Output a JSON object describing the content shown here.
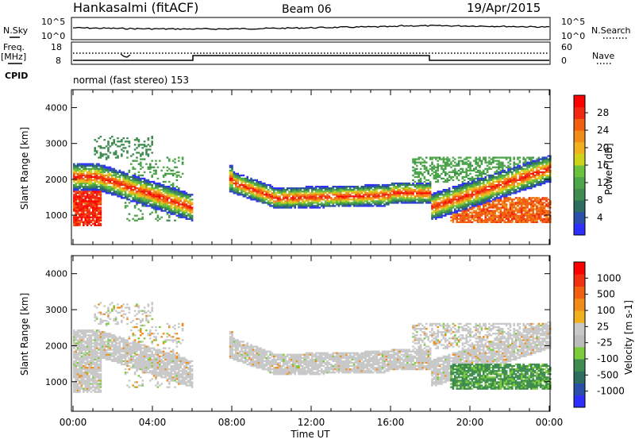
{
  "header": {
    "station": "Hankasalmi (fitACF)",
    "beam": "Beam 06",
    "date": "19/Apr/2015"
  },
  "sky_panel": {
    "left_label": "N.Sky",
    "right_label": "N.Search",
    "left_ticks": [
      "10^5",
      "10^0"
    ],
    "right_ticks": [
      "10^5",
      "10^0"
    ]
  },
  "freq_panel": {
    "left_label_1": "Freq.",
    "left_label_2": "[MHz]",
    "left_ticks": [
      "18",
      "8"
    ],
    "right_label": "Nave",
    "right_ticks": [
      "60",
      "0"
    ],
    "cpid_label": "CPID",
    "mode_text": "normal (fast stereo) 153"
  },
  "chart_data": [
    {
      "type": "heatmap",
      "title": "Power",
      "xlabel": "",
      "ylabel": "Slant Range [km]",
      "ylim": [
        180,
        4500
      ],
      "yticks": [
        "4000",
        "3000",
        "2000",
        "1000"
      ],
      "colorbar": {
        "label": "Power [dB]",
        "ticks": [
          "28",
          "24",
          "20",
          "16",
          "12",
          "8",
          "4"
        ],
        "colors": [
          "#2e2eff",
          "#2a4fa8",
          "#2e6e60",
          "#3e8c4f",
          "#4ea64a",
          "#6cc23c",
          "#cfd21a",
          "#f0b020",
          "#f08c18",
          "#f06010",
          "#f02a10",
          "#ff0000"
        ]
      }
    },
    {
      "type": "heatmap",
      "title": "Velocity",
      "xlabel": "Time UT",
      "ylabel": "Slant Range [km]",
      "ylim": [
        180,
        4500
      ],
      "yticks": [
        "4000",
        "3000",
        "2000",
        "1000"
      ],
      "xticks": [
        "00:00",
        "04:00",
        "08:00",
        "12:00",
        "16:00",
        "20:00",
        "00:00"
      ],
      "colorbar": {
        "label": "Velocity [m s-1]",
        "ticks": [
          "1000",
          "500",
          "100",
          "25",
          "-25",
          "-100",
          "-500",
          "-1000"
        ],
        "colors": [
          "#2e2eff",
          "#2a4fa8",
          "#2e6e60",
          "#3e8c4f",
          "#7ccc3c",
          "#bcbcbc",
          "#c8c8c8",
          "#f0b020",
          "#f08c18",
          "#f06010",
          "#f03010",
          "#ff0000"
        ]
      }
    }
  ]
}
